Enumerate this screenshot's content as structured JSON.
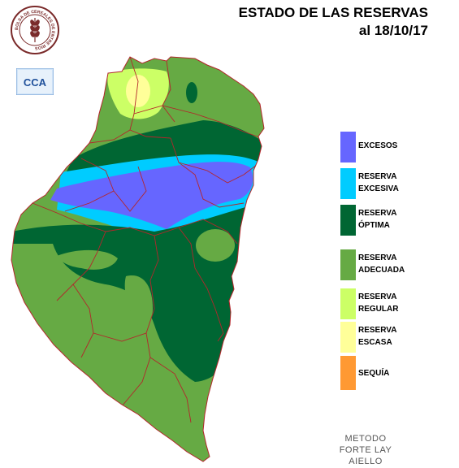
{
  "title": {
    "line1": "ESTADO DE LAS RESERVAS",
    "line2": "al 18/10/17"
  },
  "logos": {
    "seal_text": "BOLSA DE CEREALES DE ENTRE RIOS",
    "cca_text": "CCA"
  },
  "legend": [
    {
      "line1": "EXCESOS",
      "line2": "",
      "color": "#6666ff"
    },
    {
      "line1": "RESERVA",
      "line2": "EXCESIVA",
      "color": "#00ccff"
    },
    {
      "line1": "RESERVA",
      "line2": "ÓPTIMA",
      "color": "#006633"
    },
    {
      "line1": "RESERVA",
      "line2": "ADECUADA",
      "color": "#66aa44"
    },
    {
      "line1": "RESERVA",
      "line2": "REGULAR",
      "color": "#ccff66"
    },
    {
      "line1": "RESERVA",
      "line2": "ESCASA",
      "color": "#ffff99"
    },
    {
      "line1": "SEQUÍA",
      "line2": "",
      "color": "#ff9933"
    }
  ],
  "method": {
    "line1": "METODO",
    "line2": "FORTE LAY",
    "line3": "AIELLO"
  }
}
